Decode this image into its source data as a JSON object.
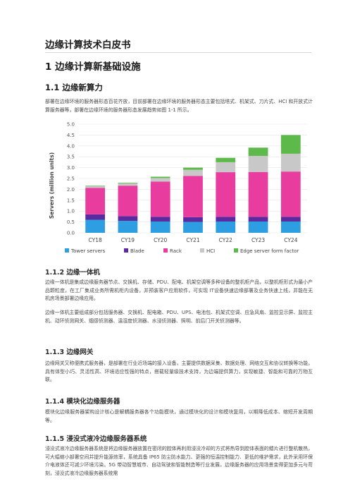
{
  "document": {
    "title": "边缘计算技术白皮书",
    "section1": "1 边缘计算新基础设施",
    "section1_1": "1.1 边缘新算力",
    "para1": "部署在边缘环境的服务器形态百花齐放，目前部署在边缘环境的服务器形态主要包括塔式、机架式、刀片式、HCI 和开放式计算服务器等，部署在边缘环境的服务器形态发展趋势如图 1-1 所示。",
    "section1_1_2": "1.1.2 边缘一体机",
    "para2": "边缘一体机是集成边缘服务器节点、交换机、存储、PDU、配电、机架空调等多种设备的整机柜产品，以整机柜形式为最小产品颗粒度，在工厂集成业务所需机柜内设备，并预装客户应用软件，可实现 IT设备快速边缘部署及业务快速上线，并能在无机房场景部署边缘应用。",
    "para3": "边缘一体机主要组成部分包括服务器、交换机、配电箱、PDU、UPS、电池包、机架式空调、应急风扇、监控显示屏、监控主机、动环侦测网关、烟感侦测器、温湿度侦测器、水浸侦测器、照明、前后门开关侦测器等。",
    "section1_1_3": "1.1.3 边缘网关",
    "para4": "边缘网关又称便携式服务器，是部署在行业近场端的接入设备，主要提供数据采集、数据处理、网络交互和协议转换等功能，具有体型小巧、灵活性高、环境适应性强的特点，搭载轻量级技术支持，为边端提供算力，实现敏捷、智能和可靠的万物互联。",
    "section1_1_4": "1.1.4 模块化边缘服务器",
    "para5": "模块化边缘服务器架构设计核心是解耦服务器各个功能模块，通过模块化的设计和模块复用，以期降低成本、缩短开发周期等。",
    "section1_1_5": "1.1.5 浸没式液冷边缘服务器系统",
    "para6": "浸没式液冷边缘服务器系统是将边缘服务器放置在密闭的腔体再利用浸没冷却的方式将热导到腔体表面的鳍片进行整机散热，可大幅缩小部署空间并提升能源效率，系统具备 IP65 防尘防水能力、更强的恒温控制能力、更低的维护需求，此外采用环保介电液体还可减少环境污染。5G 带动智慧城市、自动驾驶和智能制造等行业发展，边缘服务器的应用场景变得更加多元与苛刻，浸没式液冷边缘服务器系统需"
  },
  "chart_data": {
    "type": "bar",
    "stacked": true,
    "title": "",
    "xlabel": "",
    "ylabel": "Servers (million units)",
    "ylim": [
      0,
      5.0
    ],
    "yticks": [
      "0.0",
      "0.5",
      "1.0",
      "1.5",
      "2.0",
      "2.5",
      "3.0",
      "3.5",
      "4.0",
      "4.5",
      "5.0"
    ],
    "grid": true,
    "legend_position": "bottom",
    "categories": [
      "CY18",
      "CY19",
      "CY20",
      "CY21",
      "CY22",
      "CY23",
      "CY24"
    ],
    "series": [
      {
        "name": "Tower servers",
        "color": "#2e9ee3",
        "values": [
          0.6,
          0.55,
          0.52,
          0.5,
          0.52,
          0.52,
          0.52
        ]
      },
      {
        "name": "Blade",
        "color": "#5b2a9e",
        "values": [
          0.25,
          0.22,
          0.22,
          0.22,
          0.22,
          0.22,
          0.22
        ]
      },
      {
        "name": "Rack",
        "color": "#e83d9e",
        "values": [
          1.22,
          1.4,
          1.62,
          1.9,
          2.05,
          2.06,
          2.08
        ]
      },
      {
        "name": "HCI",
        "color": "#c8c8c8",
        "values": [
          0.08,
          0.1,
          0.16,
          0.28,
          0.46,
          0.74,
          0.82
        ]
      },
      {
        "name": "Edge server form factor",
        "color": "#5cb94a",
        "values": [
          0.02,
          0.03,
          0.06,
          0.1,
          0.2,
          0.38,
          0.86
        ]
      }
    ]
  }
}
